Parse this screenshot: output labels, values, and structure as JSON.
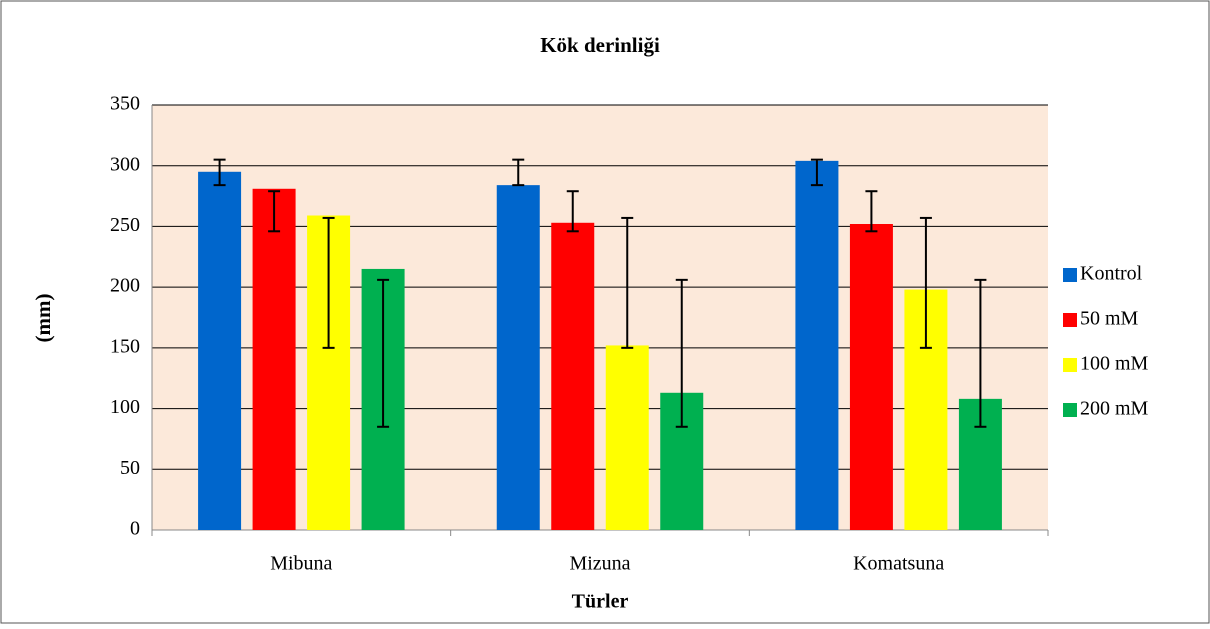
{
  "chart_data": {
    "type": "bar",
    "title": "Kök derinliği",
    "x_label": "Türler",
    "y_label": "(mm)",
    "categories": [
      "Mibuna",
      "Mizuna",
      "Komatsuna"
    ],
    "series": [
      {
        "name": "Kontrol",
        "color": "#0066cc",
        "values": [
          295,
          284,
          304
        ],
        "error_bars": [
          [
            284,
            305
          ],
          [
            284,
            305
          ],
          [
            284,
            305
          ]
        ]
      },
      {
        "name": "50 mM",
        "color": "#ff0000",
        "values": [
          281,
          253,
          252
        ],
        "error_bars": [
          [
            246,
            279
          ],
          [
            246,
            279
          ],
          [
            246,
            279
          ]
        ]
      },
      {
        "name": "100 mM",
        "color": "#ffff00",
        "values": [
          259,
          152,
          198
        ],
        "error_bars": [
          [
            150,
            257
          ],
          [
            150,
            257
          ],
          [
            150,
            257
          ]
        ]
      },
      {
        "name": "200 mM",
        "color": "#00b050",
        "values": [
          215,
          113,
          108
        ],
        "error_bars": [
          [
            85,
            206
          ],
          [
            85,
            206
          ],
          [
            85,
            206
          ]
        ]
      }
    ],
    "ylim": [
      0,
      350
    ],
    "yticks": [
      0,
      50,
      100,
      150,
      200,
      250,
      300,
      350
    ],
    "grid": true,
    "legend": "right",
    "plot_background": "#fce9da"
  }
}
